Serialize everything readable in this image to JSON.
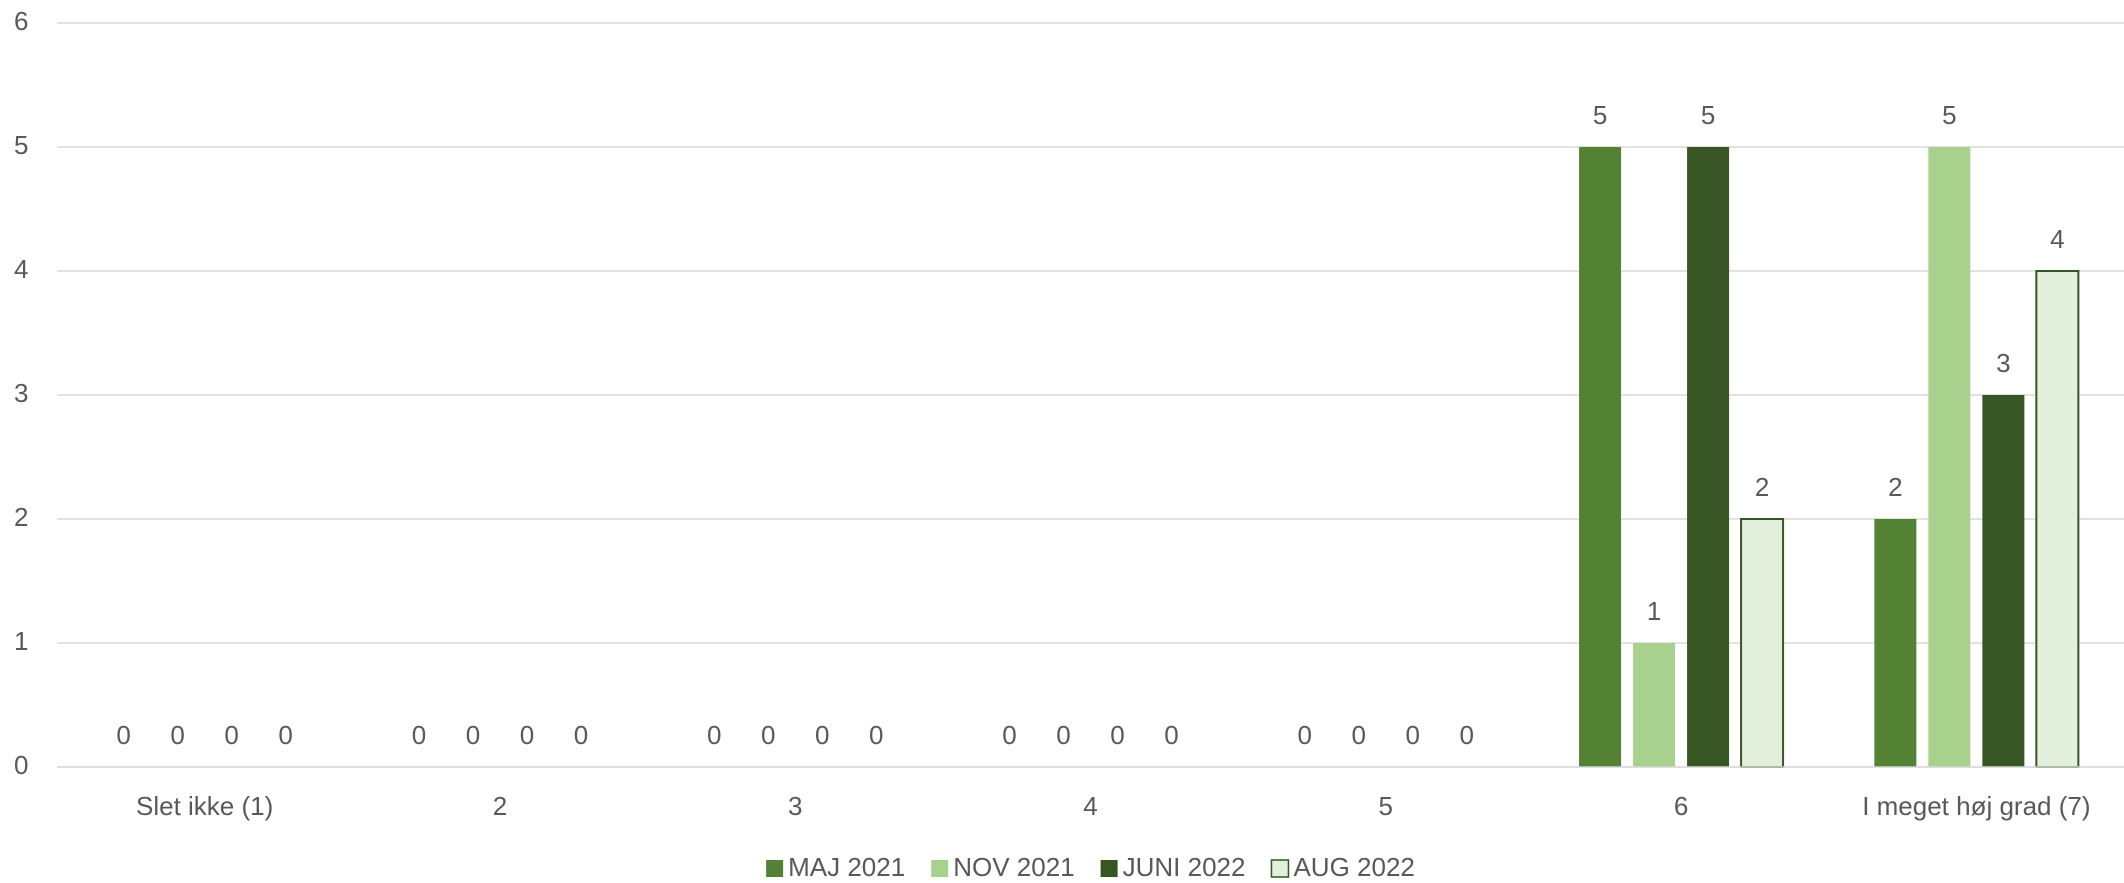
{
  "chart_data": {
    "type": "bar",
    "categories": [
      "Slet ikke (1)",
      "2",
      "3",
      "4",
      "5",
      "6",
      "I meget høj grad (7)"
    ],
    "series": [
      {
        "name": "MAJ 2021",
        "color": "#548235",
        "values": [
          0,
          0,
          0,
          0,
          0,
          5,
          2
        ]
      },
      {
        "name": "NOV 2021",
        "color": "#a9d18e",
        "values": [
          0,
          0,
          0,
          0,
          0,
          1,
          5
        ]
      },
      {
        "name": "JUNI 2022",
        "color": "#375623",
        "values": [
          0,
          0,
          0,
          0,
          0,
          5,
          3
        ]
      },
      {
        "name": "AUG 2022",
        "color": "#e2efda",
        "edgecolor": "#375623",
        "values": [
          0,
          0,
          0,
          0,
          0,
          2,
          4
        ]
      }
    ],
    "ylim": [
      0,
      6
    ],
    "yticks": [
      0,
      1,
      2,
      3,
      4,
      5,
      6
    ],
    "grid": true,
    "legend": "bottom"
  }
}
